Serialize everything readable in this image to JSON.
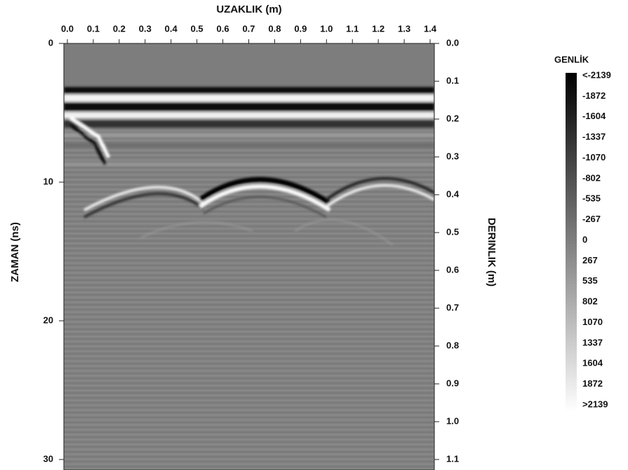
{
  "chart_data": {
    "type": "radargram",
    "x_label": "UZAKLIK (m)",
    "y_label": "ZAMAN (ns)",
    "y2_label": "DERINLIK (m)",
    "xlim": [
      0,
      1.4
    ],
    "xticks": [
      {
        "value": 0,
        "label": "0.0"
      },
      {
        "value": 0.1,
        "label": "0.1"
      },
      {
        "value": 0.2,
        "label": "0.2"
      },
      {
        "value": 0.3,
        "label": "0.3"
      },
      {
        "value": 0.4,
        "label": "0.4"
      },
      {
        "value": 0.5,
        "label": "0.5"
      },
      {
        "value": 0.6,
        "label": "0.6"
      },
      {
        "value": 0.7,
        "label": "0.7"
      },
      {
        "value": 0.8,
        "label": "0.8"
      },
      {
        "value": 0.9,
        "label": "0.9"
      },
      {
        "value": 1,
        "label": "1.0"
      },
      {
        "value": 1.1,
        "label": "1.1"
      },
      {
        "value": 1.2,
        "label": "1.2"
      },
      {
        "value": 1.3,
        "label": "1.3"
      },
      {
        "value": 1.4,
        "label": "1.4"
      }
    ],
    "ylim": [
      0,
      30
    ],
    "yticks": [
      0,
      10,
      20,
      30
    ],
    "y2lim": [
      0,
      1.1
    ],
    "y2ticks": [
      {
        "value": 0,
        "label": "0.0"
      },
      0.1,
      0.2,
      0.3,
      0.4,
      0.5,
      0.6,
      0.7,
      0.8,
      0.9,
      {
        "value": 1,
        "label": "1.0"
      },
      1.1
    ],
    "colorbar": {
      "title": "GENLİK",
      "colors": [
        "#000000",
        "#ffffff"
      ],
      "lim": [
        -2139,
        2139
      ],
      "ticks": [
        {
          "value": -2139,
          "label": "<-2139"
        },
        -1872,
        -1604,
        -1337,
        -1070,
        -802,
        -535,
        -267,
        0,
        267,
        535,
        802,
        1070,
        1337,
        1604,
        1872,
        {
          "value": 2139,
          "label": ">2139"
        }
      ]
    }
  }
}
